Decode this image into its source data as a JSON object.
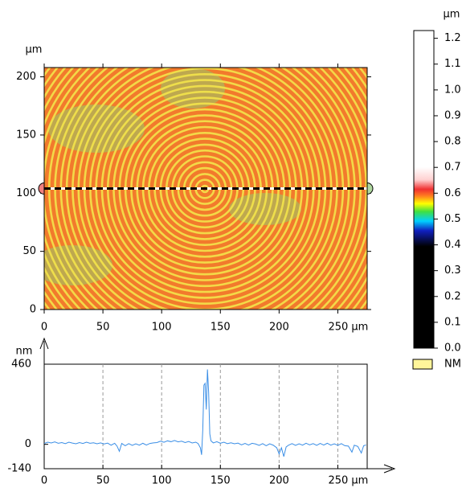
{
  "chart_data": [
    {
      "type": "image",
      "y_unit": "µm",
      "xlim": [
        0,
        275
      ],
      "ylim": [
        0,
        208
      ],
      "xticks": [
        0,
        50,
        100,
        150,
        200,
        {
          "value": 250,
          "label": "250 µm"
        }
      ],
      "yticks": [
        0,
        50,
        100,
        150,
        200
      ],
      "profile_line_y": 104,
      "colorbar": {
        "unit": "µm",
        "lim": [
          0,
          1.23
        ],
        "ticks": [
          {
            "value": 0,
            "label": "0.0"
          },
          0.1,
          0.2,
          0.3,
          0.4,
          0.5,
          0.6,
          0.7,
          0.8,
          0.9,
          {
            "value": 1,
            "label": "1.0"
          },
          1.1,
          1.2
        ],
        "legend": {
          "label": "NM",
          "color": "#fff59a"
        }
      }
    },
    {
      "type": "line",
      "y_unit": "nm",
      "xlim": [
        0,
        275
      ],
      "ylim": [
        -140,
        460
      ],
      "xticks": [
        0,
        50,
        100,
        150,
        200,
        {
          "value": 250,
          "label": "250 µm"
        }
      ],
      "yticks": [
        -140,
        0,
        460
      ],
      "grid": true,
      "x": [
        0,
        3,
        6,
        9,
        12,
        15,
        18,
        21,
        24,
        27,
        30,
        33,
        36,
        39,
        42,
        45,
        48,
        51,
        54,
        57,
        60,
        62,
        64,
        66,
        69,
        72,
        75,
        78,
        81,
        84,
        87,
        90,
        93,
        96,
        99,
        102,
        105,
        108,
        111,
        114,
        117,
        120,
        123,
        126,
        129,
        131,
        133,
        134,
        135,
        136,
        137,
        138,
        139,
        140,
        141,
        142,
        144,
        147,
        150,
        153,
        156,
        159,
        162,
        165,
        168,
        171,
        174,
        177,
        180,
        183,
        186,
        189,
        192,
        195,
        198,
        200,
        202,
        204,
        206,
        208,
        211,
        214,
        217,
        220,
        223,
        226,
        229,
        232,
        235,
        238,
        241,
        244,
        247,
        250,
        253,
        256,
        259,
        262,
        264,
        267,
        270,
        272,
        274
      ],
      "series": [
        {
          "color": "#3a8ee6",
          "values": [
            5,
            12,
            8,
            14,
            6,
            10,
            4,
            12,
            7,
            3,
            10,
            5,
            12,
            6,
            9,
            3,
            8,
            2,
            7,
            -5,
            6,
            -10,
            -40,
            5,
            -8,
            4,
            -6,
            3,
            -5,
            6,
            -4,
            5,
            8,
            10,
            18,
            12,
            20,
            15,
            22,
            14,
            18,
            10,
            16,
            8,
            12,
            5,
            -20,
            -60,
            80,
            340,
            350,
            200,
            430,
            300,
            60,
            20,
            8,
            15,
            6,
            12,
            4,
            9,
            3,
            7,
            -3,
            5,
            -4,
            6,
            2,
            -6,
            4,
            -8,
            3,
            -5,
            -20,
            -55,
            -20,
            -70,
            -15,
            -5,
            4,
            -6,
            3,
            -5,
            6,
            -3,
            4,
            -6,
            5,
            -4,
            6,
            -5,
            3,
            -6,
            4,
            -8,
            -10,
            -45,
            -5,
            -12,
            -50,
            -8,
            -4
          ]
        }
      ]
    }
  ]
}
